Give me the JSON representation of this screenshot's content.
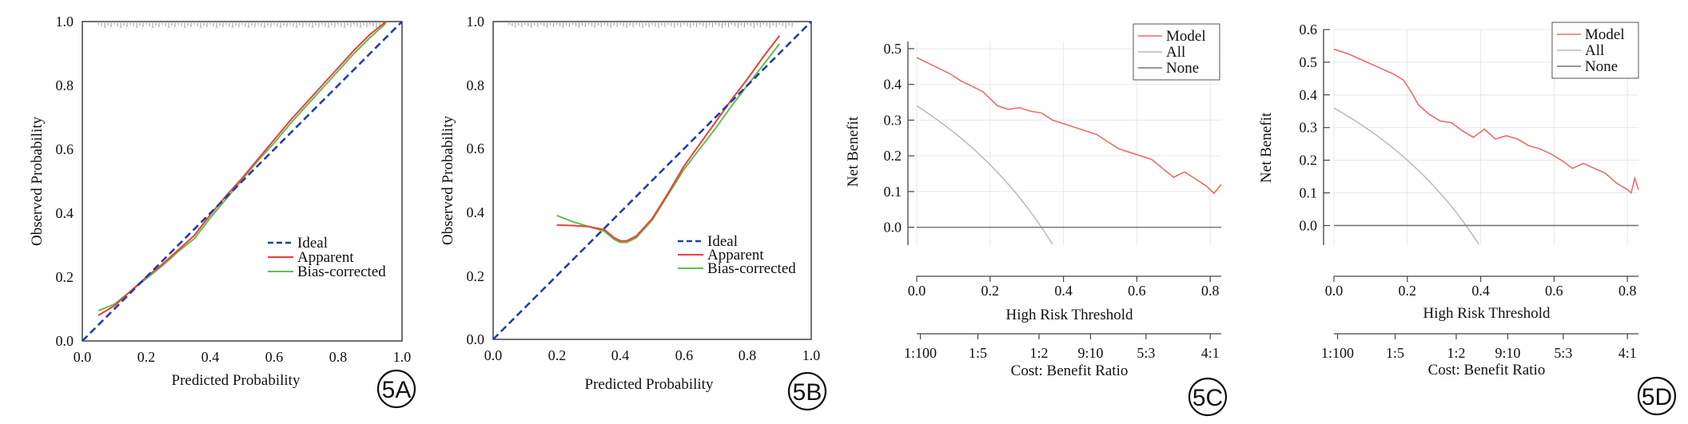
{
  "panels": [
    {
      "badge": "5A",
      "chart_data": {
        "type": "line",
        "kind": "calibration",
        "xlabel": "Predicted Probability",
        "ylabel": "Observed Probability",
        "xlim": [
          0,
          1
        ],
        "ylim": [
          0,
          1
        ],
        "xticks": [
          "0.0",
          "0.2",
          "0.4",
          "0.6",
          "0.8",
          "1.0"
        ],
        "yticks": [
          "0.0",
          "0.2",
          "0.4",
          "0.6",
          "0.8",
          "1.0"
        ],
        "rug": true,
        "legend_position": "bottom-right",
        "series": [
          {
            "name": "Ideal",
            "color": "#1f3fa8",
            "dashed": true,
            "x": [
              0,
              1
            ],
            "y": [
              0,
              1
            ]
          },
          {
            "name": "Apparent",
            "color": "#e8413a",
            "dashed": false,
            "x": [
              0.05,
              0.1,
              0.15,
              0.2,
              0.25,
              0.3,
              0.35,
              0.4,
              0.45,
              0.5,
              0.55,
              0.6,
              0.65,
              0.7,
              0.75,
              0.8,
              0.85,
              0.9,
              0.95
            ],
            "y": [
              0.08,
              0.11,
              0.155,
              0.2,
              0.24,
              0.285,
              0.33,
              0.395,
              0.455,
              0.51,
              0.57,
              0.63,
              0.69,
              0.745,
              0.8,
              0.855,
              0.91,
              0.96,
              1.0
            ]
          },
          {
            "name": "Bias-corrected",
            "color": "#62bf4a",
            "dashed": false,
            "x": [
              0.05,
              0.1,
              0.15,
              0.2,
              0.25,
              0.3,
              0.35,
              0.4,
              0.45,
              0.5,
              0.55,
              0.6,
              0.65,
              0.7,
              0.75,
              0.8,
              0.85,
              0.9,
              0.95
            ],
            "y": [
              0.095,
              0.115,
              0.155,
              0.195,
              0.235,
              0.28,
              0.32,
              0.385,
              0.445,
              0.505,
              0.565,
              0.62,
              0.68,
              0.735,
              0.79,
              0.845,
              0.9,
              0.95,
              0.995
            ]
          }
        ]
      }
    },
    {
      "badge": "5B",
      "chart_data": {
        "type": "line",
        "kind": "calibration",
        "xlabel": "Predicted Probability",
        "ylabel": "Observed Probability",
        "xlim": [
          0,
          1
        ],
        "ylim": [
          0,
          1
        ],
        "xticks": [
          "0.0",
          "0.2",
          "0.4",
          "0.6",
          "0.8",
          "1.0"
        ],
        "yticks": [
          "0.0",
          "0.2",
          "0.4",
          "0.6",
          "0.8",
          "1.0"
        ],
        "rug": true,
        "legend_position": "bottom-right",
        "series": [
          {
            "name": "Ideal",
            "color": "#1f3fa8",
            "dashed": true,
            "x": [
              0,
              1
            ],
            "y": [
              0,
              1
            ]
          },
          {
            "name": "Apparent",
            "color": "#e8413a",
            "dashed": false,
            "x": [
              0.2,
              0.25,
              0.3,
              0.35,
              0.38,
              0.4,
              0.42,
              0.45,
              0.5,
              0.55,
              0.6,
              0.65,
              0.7,
              0.75,
              0.8,
              0.85,
              0.9
            ],
            "y": [
              0.36,
              0.358,
              0.355,
              0.345,
              0.32,
              0.31,
              0.31,
              0.325,
              0.38,
              0.46,
              0.545,
              0.615,
              0.685,
              0.755,
              0.82,
              0.89,
              0.955
            ]
          },
          {
            "name": "Bias-corrected",
            "color": "#62bf4a",
            "dashed": false,
            "x": [
              0.2,
              0.25,
              0.3,
              0.35,
              0.38,
              0.4,
              0.42,
              0.45,
              0.5,
              0.55,
              0.6,
              0.65,
              0.7,
              0.75,
              0.8,
              0.85,
              0.9
            ],
            "y": [
              0.39,
              0.37,
              0.355,
              0.34,
              0.315,
              0.305,
              0.305,
              0.32,
              0.375,
              0.455,
              0.535,
              0.6,
              0.665,
              0.735,
              0.8,
              0.865,
              0.93
            ]
          }
        ]
      }
    },
    {
      "badge": "5C",
      "chart_data": {
        "type": "line",
        "kind": "decision-curve",
        "xlabel": "High Risk Threshold",
        "ylabel": "Net Benefit",
        "xlabel2": "Cost: Benefit Ratio",
        "xlim": [
          0,
          0.83
        ],
        "ylim": [
          -0.05,
          0.52
        ],
        "xticks": [
          0.0,
          0.2,
          0.4,
          0.6,
          0.8
        ],
        "yticks": [
          0.0,
          0.1,
          0.2,
          0.3,
          0.4,
          0.5
        ],
        "x2ticks": [
          {
            "label": "1:100",
            "at": 0.0099
          },
          {
            "label": "1:5",
            "at": 0.1667
          },
          {
            "label": "1:2",
            "at": 0.3333
          },
          {
            "label": "9:10",
            "at": 0.4737
          },
          {
            "label": "5:3",
            "at": 0.625
          },
          {
            "label": "4:1",
            "at": 0.8
          }
        ],
        "grid": true,
        "legend_position": "top-right",
        "series": [
          {
            "name": "Model",
            "color": "#ee6a6a",
            "x": [
              0,
              0.03,
              0.06,
              0.09,
              0.12,
              0.15,
              0.18,
              0.2,
              0.22,
              0.25,
              0.28,
              0.31,
              0.34,
              0.37,
              0.4,
              0.43,
              0.46,
              0.49,
              0.52,
              0.55,
              0.58,
              0.61,
              0.64,
              0.67,
              0.7,
              0.73,
              0.76,
              0.79,
              0.81,
              0.83
            ],
            "y": [
              0.475,
              0.46,
              0.445,
              0.43,
              0.41,
              0.395,
              0.38,
              0.36,
              0.34,
              0.33,
              0.335,
              0.325,
              0.32,
              0.3,
              0.29,
              0.28,
              0.27,
              0.26,
              0.24,
              0.22,
              0.21,
              0.2,
              0.19,
              0.165,
              0.14,
              0.155,
              0.135,
              0.115,
              0.095,
              0.12
            ]
          },
          {
            "name": "All",
            "color": "#b9b9b9",
            "prevalence": 0.34
          },
          {
            "name": "None",
            "color": "#777777",
            "x": [
              0,
              0.83
            ],
            "y": [
              0,
              0
            ]
          }
        ]
      }
    },
    {
      "badge": "5D",
      "chart_data": {
        "type": "line",
        "kind": "decision-curve",
        "xlabel": "High Risk Threshold",
        "ylabel": "Net Benefit",
        "xlabel2": "Cost: Benefit Ratio",
        "xlim": [
          0,
          0.83
        ],
        "ylim": [
          -0.06,
          0.6
        ],
        "xticks": [
          0.0,
          0.2,
          0.4,
          0.6,
          0.8
        ],
        "yticks": [
          0.0,
          0.1,
          0.2,
          0.3,
          0.4,
          0.5,
          0.6
        ],
        "x2ticks": [
          {
            "label": "1:100",
            "at": 0.0099
          },
          {
            "label": "1:5",
            "at": 0.1667
          },
          {
            "label": "1:2",
            "at": 0.3333
          },
          {
            "label": "9:10",
            "at": 0.4737
          },
          {
            "label": "5:3",
            "at": 0.625
          },
          {
            "label": "4:1",
            "at": 0.8
          }
        ],
        "grid": true,
        "legend_position": "top-right",
        "series": [
          {
            "name": "Model",
            "color": "#ee6a6a",
            "x": [
              0,
              0.04,
              0.08,
              0.12,
              0.16,
              0.19,
              0.21,
              0.23,
              0.26,
              0.29,
              0.32,
              0.35,
              0.38,
              0.41,
              0.44,
              0.47,
              0.5,
              0.53,
              0.56,
              0.59,
              0.62,
              0.65,
              0.68,
              0.71,
              0.74,
              0.77,
              0.8,
              0.81,
              0.82,
              0.83
            ],
            "y": [
              0.54,
              0.525,
              0.505,
              0.485,
              0.465,
              0.445,
              0.41,
              0.37,
              0.34,
              0.32,
              0.315,
              0.29,
              0.27,
              0.295,
              0.265,
              0.275,
              0.265,
              0.245,
              0.235,
              0.22,
              0.2,
              0.175,
              0.19,
              0.175,
              0.16,
              0.13,
              0.11,
              0.1,
              0.145,
              0.11
            ]
          },
          {
            "name": "All",
            "color": "#b9b9b9",
            "prevalence": 0.36
          },
          {
            "name": "None",
            "color": "#777777",
            "x": [
              0,
              0.83
            ],
            "y": [
              0,
              0
            ]
          }
        ]
      }
    }
  ]
}
